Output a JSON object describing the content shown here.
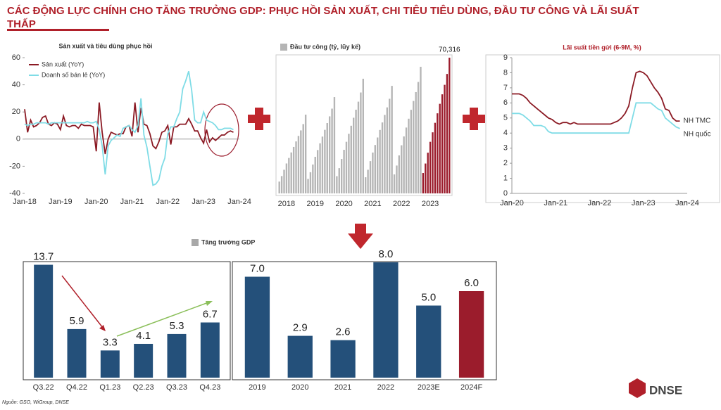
{
  "title": "CÁC ĐỘNG LỰC CHÍNH CHO TĂNG TRƯỞNG GDP: PHỤC HỒI SẢN XUẤT, CHI TIÊU TIÊU DÙNG, ĐẦU TƯ CÔNG VÀ LÃI SUẤT THẤP",
  "source": "Nguồn: GSO, WiGroup, DNSE",
  "logo": "DNSE",
  "chart_data": [
    {
      "type": "line",
      "title": "Sản xuất và tiêu dùng phục hồi",
      "categories": [
        "Jan-18",
        null,
        null,
        null,
        null,
        null,
        null,
        null,
        null,
        null,
        null,
        null,
        "Jan-19",
        null,
        null,
        null,
        null,
        null,
        null,
        null,
        null,
        null,
        null,
        null,
        "Jan-20",
        null,
        null,
        null,
        null,
        null,
        null,
        null,
        null,
        null,
        null,
        null,
        "Jan-21",
        null,
        null,
        null,
        null,
        null,
        null,
        null,
        null,
        null,
        null,
        null,
        "Jan-22",
        null,
        null,
        null,
        null,
        null,
        null,
        null,
        null,
        null,
        null,
        null,
        "Jan-23",
        null,
        null,
        null,
        null,
        null,
        null,
        null,
        null,
        null,
        null,
        null,
        "Jan-24"
      ],
      "series": [
        {
          "name": "Sản xuất (YoY)",
          "color": "#8b1a24",
          "values": [
            22,
            5,
            14,
            9,
            10,
            12,
            16,
            17,
            11,
            10,
            12,
            11,
            7,
            17,
            10,
            9,
            10,
            10,
            8,
            11,
            10,
            10,
            10,
            9,
            -9,
            27,
            5,
            -11,
            0,
            5,
            4,
            3,
            4,
            4,
            9,
            10,
            2,
            27,
            5,
            23,
            11,
            10,
            4,
            -5,
            -7,
            -2,
            5,
            6,
            10,
            -4,
            9,
            9,
            11,
            11,
            11,
            15,
            11,
            6,
            6,
            1,
            -3,
            7,
            -2,
            1,
            -1,
            1,
            3,
            3,
            5,
            6,
            5,
            null,
            null
          ]
        },
        {
          "name": "Doanh số bán lẻ (YoY)",
          "color": "#7fdce6",
          "values": [
            11,
            10,
            11,
            11,
            12,
            12,
            12,
            12,
            11,
            12,
            12,
            12,
            12,
            12,
            12,
            12,
            12,
            12,
            12,
            12,
            12,
            13,
            12,
            12,
            13,
            7,
            -5,
            -26,
            -5,
            -1,
            1,
            3,
            2,
            8,
            9,
            10,
            7,
            5,
            10,
            30,
            3,
            -6,
            -20,
            -34,
            -33,
            -30,
            -20,
            -14,
            4,
            9,
            9,
            15,
            20,
            37,
            43,
            50,
            36,
            14,
            12,
            12,
            20,
            14,
            13,
            12,
            10,
            7,
            7,
            8,
            8,
            8,
            7,
            null,
            null
          ]
        }
      ],
      "ylim": [
        -40,
        60
      ],
      "yticks": [
        -40,
        -20,
        0,
        20,
        40,
        60
      ],
      "legend": "upper left"
    },
    {
      "type": "bar",
      "title": "",
      "categories": [
        null,
        null,
        null,
        "2018",
        null,
        null,
        null,
        null,
        null,
        null,
        null,
        null,
        null,
        null,
        null,
        "2019",
        null,
        null,
        null,
        null,
        null,
        null,
        null,
        null,
        null,
        null,
        null,
        "2020",
        null,
        null,
        null,
        null,
        null,
        null,
        null,
        null,
        null,
        null,
        null,
        "2021",
        null,
        null,
        null,
        null,
        null,
        null,
        null,
        null,
        null,
        null,
        null,
        "2022",
        null,
        null,
        null,
        null,
        null,
        null,
        null,
        null,
        null,
        null,
        null,
        "2023",
        null,
        null,
        null,
        null,
        null,
        null,
        null,
        null
      ],
      "series": [
        {
          "name": "Đầu tư công (tỷ, lũy kế)",
          "color": "#b5b5b5",
          "values": [
            6120,
            8980,
            12240,
            15500,
            18360,
            21220,
            24070,
            26930,
            29780,
            32640,
            35900,
            40800,
            7490,
            10980,
            14970,
            18960,
            22460,
            25950,
            29440,
            32930,
            36430,
            39920,
            43910,
            49900,
            8910,
            13070,
            17820,
            22570,
            26730,
            30890,
            35050,
            39200,
            43360,
            47520,
            52270,
            59400,
            8360,
            12250,
            16710,
            21170,
            25070,
            28960,
            32860,
            36760,
            40660,
            44560,
            49020,
            55700,
            9840,
            14430,
            19680,
            24930,
            29520,
            34110,
            38700,
            43300,
            47890,
            52480,
            57730,
            65600,
            null,
            null,
            null,
            null,
            null,
            null,
            null,
            null,
            null,
            null,
            null,
            null
          ]
        },
        {
          "color": "#9b1c2c",
          "values": [
            null,
            null,
            null,
            null,
            null,
            null,
            null,
            null,
            null,
            null,
            null,
            null,
            null,
            null,
            null,
            null,
            null,
            null,
            null,
            null,
            null,
            null,
            null,
            null,
            null,
            null,
            null,
            null,
            null,
            null,
            null,
            null,
            null,
            null,
            null,
            null,
            null,
            null,
            null,
            null,
            null,
            null,
            null,
            null,
            null,
            null,
            null,
            null,
            null,
            null,
            null,
            null,
            null,
            null,
            null,
            null,
            null,
            null,
            null,
            null,
            10550,
            15470,
            21090,
            26720,
            31640,
            36560,
            41490,
            46410,
            51330,
            56250,
            61880,
            70316
          ],
          "value_labels": [
            null,
            null,
            null,
            null,
            null,
            null,
            null,
            null,
            null,
            null,
            null,
            null,
            null,
            null,
            null,
            null,
            null,
            null,
            null,
            null,
            null,
            null,
            null,
            null,
            null,
            null,
            null,
            null,
            null,
            null,
            null,
            null,
            null,
            null,
            null,
            null,
            null,
            null,
            null,
            null,
            null,
            null,
            null,
            null,
            null,
            null,
            null,
            null,
            null,
            null,
            null,
            null,
            null,
            null,
            null,
            null,
            null,
            null,
            null,
            null,
            null,
            null,
            null,
            null,
            null,
            null,
            null,
            null,
            null,
            null,
            null,
            "70,316"
          ]
        }
      ]
    },
    {
      "type": "line",
      "title": "Lãi suất tiền gửi (6-9M, %)",
      "categories": [
        "Jan-20",
        null,
        null,
        null,
        null,
        null,
        null,
        null,
        null,
        null,
        null,
        null,
        "Jan-21",
        null,
        null,
        null,
        null,
        null,
        null,
        null,
        null,
        null,
        null,
        null,
        "Jan-22",
        null,
        null,
        null,
        null,
        null,
        null,
        null,
        null,
        null,
        null,
        null,
        "Jan-23",
        null,
        null,
        null,
        null,
        null,
        null,
        null,
        null,
        null,
        null,
        null,
        "Jan-24"
      ],
      "series": [
        {
          "name": "NH TMC",
          "color": "#8b1a24",
          "values": [
            6.6,
            6.6,
            6.6,
            6.5,
            6.3,
            6.0,
            5.8,
            5.6,
            5.4,
            5.2,
            5.0,
            4.9,
            4.7,
            4.6,
            4.7,
            4.7,
            4.6,
            4.7,
            4.6,
            4.6,
            4.6,
            4.6,
            4.6,
            4.6,
            4.6,
            4.6,
            4.6,
            4.6,
            4.7,
            4.8,
            5.0,
            5.3,
            5.8,
            7.0,
            8.0,
            8.1,
            8.0,
            7.8,
            7.4,
            7.0,
            6.7,
            6.3,
            5.6,
            5.5,
            5.0,
            4.8,
            4.8,
            null,
            null
          ]
        },
        {
          "name": "NH quốc",
          "color": "#7fdce6",
          "values": [
            5.3,
            5.3,
            5.3,
            5.2,
            5.0,
            4.8,
            4.5,
            4.5,
            4.5,
            4.4,
            4.1,
            4.0,
            4.0,
            4.0,
            4.0,
            4.0,
            4.0,
            4.0,
            4.0,
            4.0,
            4.0,
            4.0,
            4.0,
            4.0,
            4.0,
            4.0,
            4.0,
            4.0,
            4.0,
            4.0,
            4.0,
            4.0,
            4.0,
            5.0,
            6.0,
            6.0,
            6.0,
            6.0,
            6.0,
            5.8,
            5.6,
            5.5,
            5.0,
            4.8,
            4.6,
            4.4,
            4.3,
            null,
            null
          ]
        }
      ],
      "ylim": [
        0,
        9
      ],
      "yticks": [
        0,
        1,
        2,
        3,
        4,
        5,
        6,
        7,
        8,
        9
      ],
      "legend": "line-end"
    },
    {
      "type": "bar",
      "name": "Tăng trưởng GDP",
      "legend_color": "#a8a8a8",
      "categories": [
        "Q3.22",
        "Q4.22",
        "Q1.23",
        "Q2.23",
        "Q3.23",
        "Q4.23"
      ],
      "values": [
        13.7,
        5.9,
        3.3,
        4.1,
        5.3,
        6.7
      ],
      "color": "#24507a",
      "ylim": [
        0,
        14
      ],
      "data_labels": true
    },
    {
      "type": "bar",
      "categories": [
        "2019",
        "2020",
        "2021",
        "2022",
        "2023E",
        "2024F"
      ],
      "values": [
        7,
        2.9,
        2.6,
        8,
        5,
        6
      ],
      "value_labels": [
        "7.0",
        "2.9",
        "2.6",
        "8.0",
        "5.0",
        "6.0"
      ],
      "colors": [
        "#24507a",
        "#24507a",
        "#24507a",
        "#24507a",
        "#24507a",
        "#9b1c2c"
      ],
      "ylim": [
        0,
        8
      ],
      "data_labels": true
    }
  ]
}
